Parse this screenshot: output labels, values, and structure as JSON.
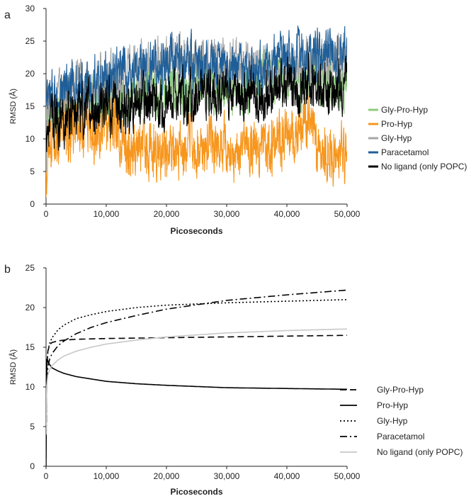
{
  "chart_data": [
    {
      "type": "line",
      "panel_label": "a",
      "xlabel": "Picoseconds",
      "ylabel": "RMSD (Å)",
      "xlim": [
        0,
        50000
      ],
      "ylim": [
        0,
        30
      ],
      "x_ticks": [
        0,
        10000,
        20000,
        30000,
        40000,
        50000
      ],
      "x_tick_labels": [
        "0",
        "10,000",
        "20,000",
        "30,000",
        "40,000",
        "50,000"
      ],
      "y_ticks": [
        0,
        5,
        10,
        15,
        20,
        25,
        30
      ],
      "y_tick_labels": [
        "0",
        "5",
        "10",
        "15",
        "20",
        "25",
        "30"
      ],
      "legend_position": "right",
      "series": [
        {
          "name": "Gly-Pro-Hyp",
          "color": "#8fcc7e",
          "x": [
            0,
            2500,
            5000,
            7500,
            10000,
            12500,
            15000,
            17500,
            20000,
            22500,
            25000,
            27500,
            30000,
            32500,
            35000,
            37500,
            40000,
            42500,
            45000,
            47500,
            50000
          ],
          "y": [
            13,
            15,
            15.5,
            16,
            16,
            16.5,
            17,
            17,
            17.5,
            18,
            18,
            18,
            18,
            18,
            18.5,
            19,
            19,
            19,
            18.5,
            18,
            18
          ]
        },
        {
          "name": "Pro-Hyp",
          "color": "#f7961d",
          "x": [
            0,
            500,
            1000,
            2500,
            5000,
            7500,
            10000,
            12000,
            13000,
            15000,
            17500,
            20000,
            22500,
            25000,
            27500,
            30000,
            32500,
            35000,
            37500,
            40000,
            42500,
            44000,
            45000,
            47500,
            50000
          ],
          "y": [
            1,
            8,
            10,
            11,
            12,
            12,
            12,
            12,
            8,
            8,
            9,
            8,
            8,
            8.5,
            9,
            8,
            8,
            8.5,
            9,
            10,
            12,
            14,
            8,
            7.5,
            7.5
          ]
        },
        {
          "name": "Gly-Hyp",
          "color": "#a6a6a6",
          "x": [
            0,
            2500,
            5000,
            7500,
            10000,
            12500,
            15000,
            17500,
            20000,
            22500,
            25000,
            27500,
            30000,
            32500,
            35000,
            37500,
            40000,
            42500,
            45000,
            47500,
            50000
          ],
          "y": [
            14,
            17,
            18,
            18,
            19,
            20,
            20.5,
            21,
            21.5,
            22,
            22,
            22,
            21.5,
            21,
            21,
            20.5,
            20.5,
            21,
            21.5,
            22,
            22.5
          ]
        },
        {
          "name": "Paracetamol",
          "color": "#1f5f99",
          "x": [
            0,
            2500,
            5000,
            7500,
            10000,
            12500,
            15000,
            17500,
            20000,
            22500,
            25000,
            27500,
            30000,
            32500,
            35000,
            37500,
            40000,
            42500,
            45000,
            47500,
            50000
          ],
          "y": [
            15,
            17,
            18,
            18.5,
            19,
            20,
            20.5,
            21,
            21.5,
            21.5,
            21.5,
            21,
            21,
            20.5,
            20.5,
            21,
            22,
            23,
            23.5,
            23,
            22.5
          ]
        },
        {
          "name": "No ligand (only POPC)",
          "color": "#000000",
          "x": [
            0,
            2500,
            5000,
            7500,
            10000,
            12500,
            15000,
            17500,
            20000,
            22500,
            25000,
            27500,
            30000,
            32500,
            35000,
            37500,
            40000,
            42500,
            45000,
            47500,
            50000
          ],
          "y": [
            12,
            13.5,
            14,
            14.5,
            15,
            15,
            15.5,
            16,
            16,
            16.5,
            16.5,
            17,
            17,
            17,
            17,
            17,
            17.5,
            18,
            18,
            18.5,
            19
          ]
        }
      ]
    },
    {
      "type": "line",
      "panel_label": "b",
      "xlabel": "Picoseconds",
      "ylabel": "RMSD (Å)",
      "xlim": [
        0,
        50000
      ],
      "ylim": [
        0,
        25
      ],
      "x_ticks": [
        0,
        10000,
        20000,
        30000,
        40000,
        50000
      ],
      "x_tick_labels": [
        "0",
        "10,000",
        "20,000",
        "30,000",
        "40,000",
        "50,000"
      ],
      "y_ticks": [
        0,
        5,
        10,
        15,
        20,
        25
      ],
      "y_tick_labels": [
        "0",
        "5",
        "10",
        "15",
        "20",
        "25"
      ],
      "legend_position": "right",
      "series": [
        {
          "name": "Gly-Pro-Hyp",
          "color": "#000000",
          "dash": "dashed",
          "x": [
            0,
            100,
            300,
            600,
            1000,
            2000,
            3000,
            5000,
            10000,
            20000,
            30000,
            40000,
            50000
          ],
          "y": [
            3,
            12,
            14.5,
            15.3,
            15.6,
            15.8,
            15.9,
            16.0,
            16.1,
            16.2,
            16.3,
            16.4,
            16.5
          ]
        },
        {
          "name": "Pro-Hyp",
          "color": "#000000",
          "dash": "solid",
          "x": [
            0,
            50,
            150,
            300,
            600,
            1000,
            2000,
            3000,
            5000,
            7500,
            10000,
            15000,
            20000,
            30000,
            40000,
            50000
          ],
          "y": [
            0,
            8,
            13.5,
            13.3,
            12.8,
            12.4,
            12.0,
            11.7,
            11.3,
            11.0,
            10.7,
            10.4,
            10.2,
            9.9,
            9.8,
            9.7
          ]
        },
        {
          "name": "Gly-Hyp",
          "color": "#000000",
          "dash": "dotted",
          "x": [
            0,
            100,
            300,
            600,
            1000,
            2000,
            3000,
            5000,
            7500,
            10000,
            15000,
            20000,
            30000,
            40000,
            50000
          ],
          "y": [
            3,
            12,
            14.5,
            15.5,
            16.2,
            17.2,
            17.8,
            18.6,
            19.1,
            19.5,
            20.0,
            20.3,
            20.6,
            20.8,
            21.0
          ]
        },
        {
          "name": "Paracetamol",
          "color": "#000000",
          "dash": "dashdot",
          "x": [
            0,
            100,
            300,
            600,
            1000,
            2000,
            3000,
            5000,
            7500,
            10000,
            15000,
            20000,
            30000,
            40000,
            50000
          ],
          "y": [
            2,
            10,
            12.5,
            13.5,
            14.2,
            15.2,
            15.8,
            16.7,
            17.5,
            18.1,
            19.0,
            19.8,
            20.9,
            21.6,
            22.2
          ]
        },
        {
          "name": "No ligand (only POPC)",
          "color": "#c8c8c8",
          "dash": "solid",
          "x": [
            0,
            100,
            300,
            600,
            1000,
            2000,
            3000,
            5000,
            7500,
            10000,
            15000,
            20000,
            30000,
            40000,
            50000
          ],
          "y": [
            4,
            10,
            11.5,
            12.2,
            12.7,
            13.4,
            13.9,
            14.5,
            15.0,
            15.4,
            15.9,
            16.3,
            16.8,
            17.1,
            17.3
          ]
        }
      ]
    }
  ]
}
